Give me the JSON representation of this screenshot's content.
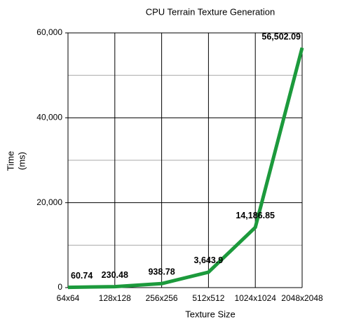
{
  "chart_data": {
    "type": "line",
    "title": "CPU Terrain Texture Generation",
    "xlabel": "Texture Size",
    "ylabel_lines": [
      "Time",
      "(ms)"
    ],
    "categories": [
      "64x64",
      "128x128",
      "256x256",
      "512x512",
      "1024x1024",
      "2048x2048"
    ],
    "values": [
      60.74,
      230.48,
      938.78,
      3643.9,
      14186.85,
      56502.09
    ],
    "value_labels": [
      "60.74",
      "230.48",
      "938.78",
      "3,643.9",
      "14,186.85",
      "56,502.09"
    ],
    "color": "#1c9a3c",
    "ylim": [
      0,
      60000
    ],
    "yticks": [
      0,
      {
        "value": 20000,
        "label": "20,000"
      },
      {
        "value": 40000,
        "label": "40,000"
      },
      {
        "value": 60000,
        "label": "60,000"
      }
    ],
    "minor_yticks": [
      10000,
      30000,
      50000
    ],
    "grid": true
  }
}
